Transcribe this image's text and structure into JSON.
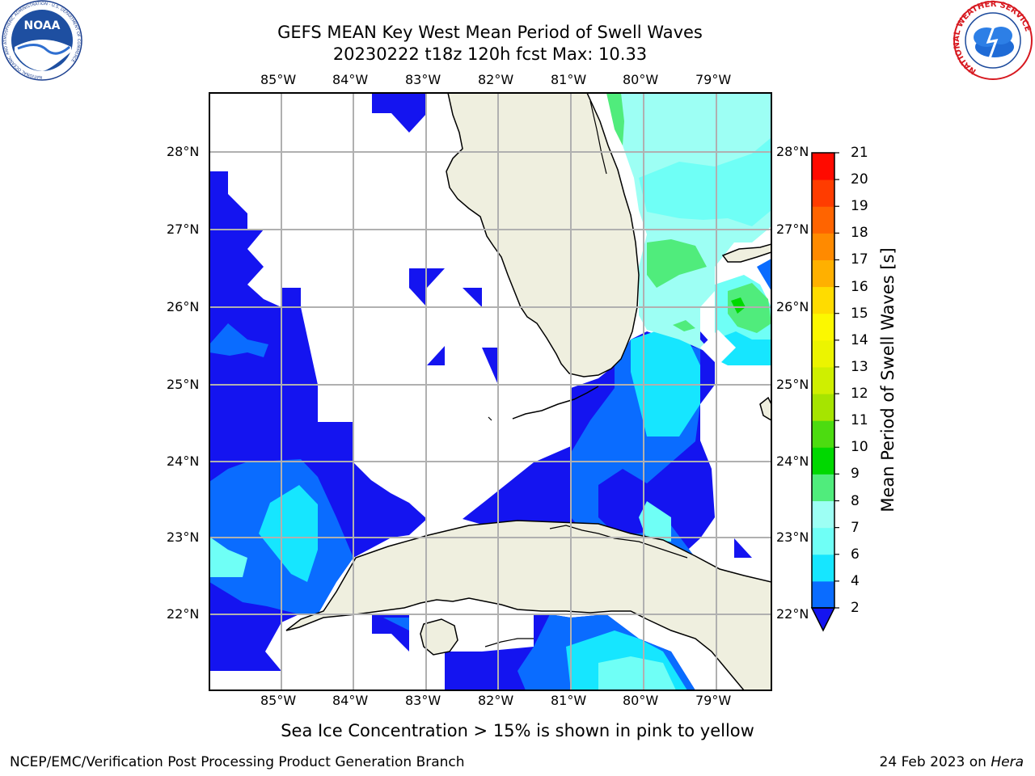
{
  "header": {
    "title_line1": "GEFS MEAN Key West Mean Period of Swell Waves",
    "title_line2": "20230222 t18z 120h fcst   Max: 10.33"
  },
  "map": {
    "lon_ticks": [
      "85°W",
      "84°W",
      "83°W",
      "82°W",
      "81°W",
      "80°W",
      "79°W"
    ],
    "lat_ticks": [
      "28°N",
      "27°N",
      "26°N",
      "25°N",
      "24°N",
      "23°N",
      "22°N"
    ],
    "land_color": "#efefdf",
    "grid_color": "#b0b0b0"
  },
  "colorbar": {
    "label": "Mean Period of Swell Waves [s]",
    "levels": [
      "2",
      "4",
      "6",
      "7",
      "8",
      "9",
      "10",
      "11",
      "12",
      "13",
      "14",
      "15",
      "16",
      "17",
      "18",
      "19",
      "20",
      "21"
    ],
    "colors": [
      "#0a6cff",
      "#16e6ff",
      "#6ffff6",
      "#9dfff4",
      "#50ec7c",
      "#00d800",
      "#4cdc10",
      "#a6e400",
      "#cfef00",
      "#ecf400",
      "#fcf800",
      "#ffdc00",
      "#ffb000",
      "#ff8a00",
      "#ff6400",
      "#ff3c00",
      "#ff0a00"
    ],
    "under_color": "#1414f0"
  },
  "subtitle": "Sea Ice Concentration > 15% is shown in pink to yellow",
  "footer": {
    "left": "NCEP/EMC/Verification Post Processing Product Generation Branch",
    "right_date": "24 Feb 2023 on ",
    "right_machine": "Hera"
  },
  "logos": {
    "noaa_text": "NOAA",
    "noaa_ring": "NATIONAL OCEANIC AND ATMOSPHERIC ADMINISTRATION · U.S. DEPARTMENT OF COMMERCE",
    "nws_ring": "NATIONAL WEATHER SERVICE"
  }
}
